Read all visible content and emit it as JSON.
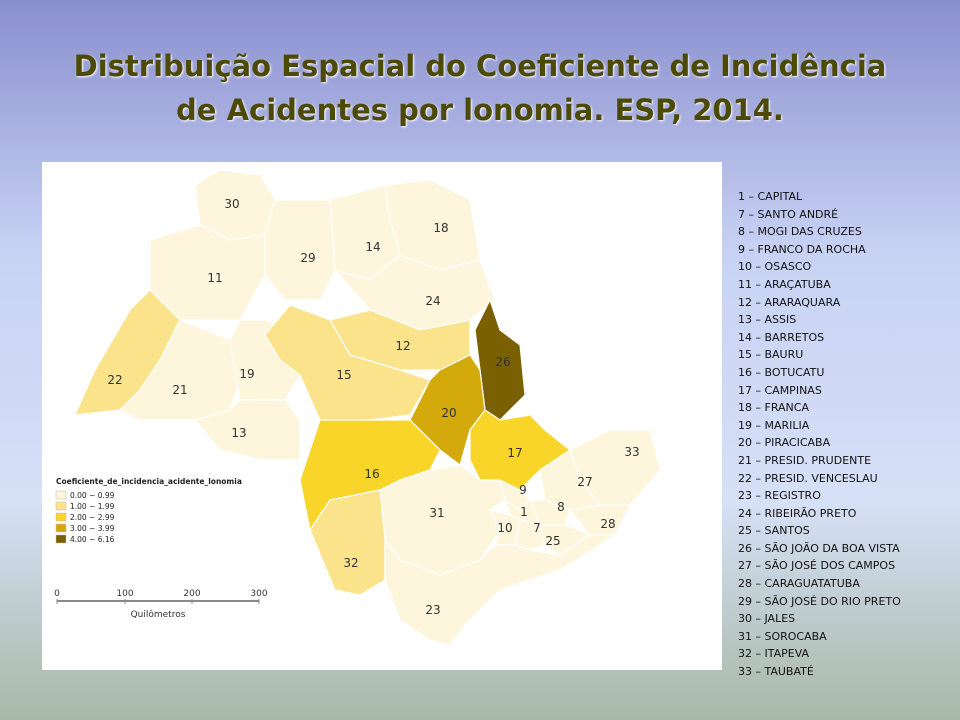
{
  "header": {
    "title_lines": [
      "Distribuição Espacial  do Coeficiente de Incidência",
      "de Acidentes por lonomia. ESP, 2014."
    ]
  },
  "map": {
    "regions": [
      {
        "label": "30",
        "color": "#fdf5dc"
      },
      {
        "label": "18",
        "color": "#fdf5dc"
      },
      {
        "label": "14",
        "color": "#fdf5dc"
      },
      {
        "label": "29",
        "color": "#fdf5dc"
      },
      {
        "label": "11",
        "color": "#fdf5dc"
      },
      {
        "label": "24",
        "color": "#fdf5dc"
      },
      {
        "label": "22",
        "color": "#fbe38c"
      },
      {
        "label": "21",
        "color": "#fdf5dc"
      },
      {
        "label": "19",
        "color": "#fdf5dc"
      },
      {
        "label": "13",
        "color": "#fdf5dc"
      },
      {
        "label": "12",
        "color": "#fbe38c"
      },
      {
        "label": "15",
        "color": "#fbe38c"
      },
      {
        "label": "26",
        "color": "#7a6000"
      },
      {
        "label": "20",
        "color": "#d4a90c"
      },
      {
        "label": "17",
        "color": "#f9d52a"
      },
      {
        "label": "16",
        "color": "#f9d52a"
      },
      {
        "label": "33",
        "color": "#fdf5dc"
      },
      {
        "label": "27",
        "color": "#fdf5dc"
      },
      {
        "label": "9",
        "color": "#fdf5dc"
      },
      {
        "label": "8",
        "color": "#fdf5dc"
      },
      {
        "label": "1",
        "color": "#fdf5dc"
      },
      {
        "label": "28",
        "color": "#fdf5dc"
      },
      {
        "label": "31",
        "color": "#fdf5dc"
      },
      {
        "label": "10",
        "color": "#fdf5dc"
      },
      {
        "label": "7",
        "color": "#fdf5dc"
      },
      {
        "label": "25",
        "color": "#fdf5dc"
      },
      {
        "label": "32",
        "color": "#fbe38c"
      },
      {
        "label": "23",
        "color": "#fdf5dc"
      }
    ],
    "legend": {
      "title": "Coeficiente_de_incidencia_acidente_lonomia",
      "items": [
        {
          "label": "0.00 ~ 0.99",
          "color": "#fdf5dc"
        },
        {
          "label": "1.00 ~ 1.99",
          "color": "#fbe38c"
        },
        {
          "label": "2.00 ~ 2.99",
          "color": "#f9d52a"
        },
        {
          "label": "3.00 ~ 3.99",
          "color": "#d4a90c"
        },
        {
          "label": "4.00 ~ 6.16",
          "color": "#7a6000"
        }
      ]
    },
    "scale": {
      "labels": [
        0,
        100,
        200,
        300
      ],
      "unit": "Quilômetros"
    }
  },
  "region_list": [
    "1 – CAPITAL",
    "7 – SANTO ANDRÉ",
    "8 – MOGI DAS CRUZES",
    "9 – FRANCO DA ROCHA",
    "10 – OSASCO",
    "11 – ARAÇATUBA",
    "12 – ARARAQUARA",
    "13 – ASSIS",
    "14 – BARRETOS",
    "15 – BAURU",
    "16 – BOTUCATU",
    "17 – CAMPINAS",
    "18 – FRANCA",
    "19 – MARILIA",
    "20 – PIRACICABA",
    "21 – PRESID. PRUDENTE",
    "22 – PRESID. VENCESLAU",
    "23 – REGISTRO",
    "24 – RIBEIRÃO PRETO",
    "25 – SANTOS",
    "26 – SÃO JOÃO DA BOA VISTA",
    "27 – SÃO JOSÉ DOS CAMPOS",
    "28 – CARAGUATATUBA",
    "29 – SÃO JOSÉ DO RIO PRETO",
    "30 – JALES",
    "31 – SOROCABA",
    "32 – ITAPEVA",
    "33 – TAUBATÉ"
  ]
}
